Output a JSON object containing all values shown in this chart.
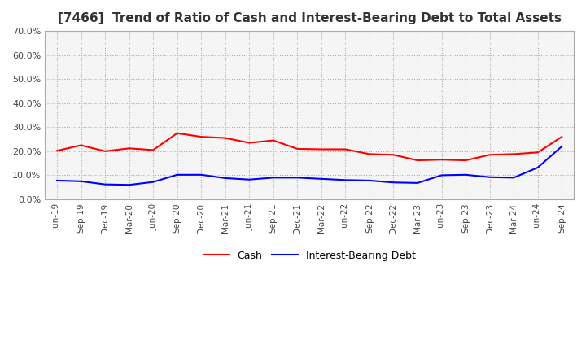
{
  "title": "[7466]  Trend of Ratio of Cash and Interest-Bearing Debt to Total Assets",
  "x_labels": [
    "Jun-19",
    "Sep-19",
    "Dec-19",
    "Mar-20",
    "Jun-20",
    "Sep-20",
    "Dec-20",
    "Mar-21",
    "Jun-21",
    "Sep-21",
    "Dec-21",
    "Mar-22",
    "Jun-22",
    "Sep-22",
    "Dec-22",
    "Mar-23",
    "Jun-23",
    "Sep-23",
    "Dec-23",
    "Mar-24",
    "Jun-24",
    "Sep-24"
  ],
  "cash": [
    20.2,
    22.5,
    20.0,
    21.2,
    20.5,
    27.5,
    26.0,
    25.5,
    23.5,
    24.5,
    21.0,
    20.8,
    20.8,
    18.8,
    18.5,
    16.2,
    16.5,
    16.2,
    18.5,
    18.8,
    19.5,
    26.0
  ],
  "interest_bearing_debt": [
    7.8,
    7.5,
    6.2,
    6.0,
    7.2,
    10.2,
    10.2,
    8.8,
    8.2,
    9.0,
    9.0,
    8.5,
    8.0,
    7.8,
    7.0,
    6.8,
    10.0,
    10.2,
    9.2,
    9.0,
    13.2,
    22.0
  ],
  "cash_color": "#ff0000",
  "debt_color": "#0000ff",
  "ylim": [
    0,
    70
  ],
  "yticks": [
    0,
    10,
    20,
    30,
    40,
    50,
    60,
    70
  ],
  "grid_color": "#aaaaaa",
  "plot_bg_color": "#f5f5f5",
  "background_color": "#ffffff",
  "title_fontsize": 11,
  "legend_labels": [
    "Cash",
    "Interest-Bearing Debt"
  ]
}
